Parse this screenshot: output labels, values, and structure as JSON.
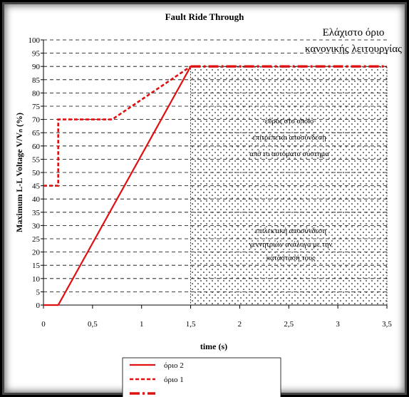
{
  "chart_data": {
    "type": "line",
    "title": "Fault Ride Through",
    "xlabel": "time (s)",
    "ylabel": "Maximum L-L Voltage V/Vₙ (%)",
    "xlim": [
      0,
      3.5
    ],
    "ylim": [
      0,
      100
    ],
    "x_ticks": [
      "0",
      "0,5",
      "1",
      "1,5",
      "2",
      "2,5",
      "3",
      "3,5"
    ],
    "y_ticks": [
      "0",
      "5",
      "10",
      "15",
      "20",
      "25",
      "30",
      "35",
      "40",
      "45",
      "50",
      "55",
      "60",
      "65",
      "70",
      "75",
      "80",
      "85",
      "90",
      "95",
      "100"
    ],
    "grid": "horizontal dashed",
    "series": [
      {
        "name": "όριο 2",
        "style": "solid",
        "color": "#e01010",
        "x": [
          0,
          0.15,
          1.5
        ],
        "y": [
          0,
          0,
          90
        ]
      },
      {
        "name": "όριο 1",
        "style": "dotted",
        "color": "#e01010",
        "x": [
          0,
          0.15,
          0.15,
          0.7,
          1.5
        ],
        "y": [
          45,
          45,
          70,
          70,
          90
        ]
      },
      {
        "name": "",
        "style": "dash-dot",
        "color": "#e01010",
        "x": [
          1.5,
          3.5
        ],
        "y": [
          90,
          90
        ]
      }
    ],
    "region": {
      "x": [
        1.5,
        3.5
      ],
      "y": [
        0,
        90
      ],
      "fill": "dotted pattern"
    },
    "annotations": {
      "normal_limit": [
        "Ελάχιστο όριο",
        "κανονικής λειτουργίας"
      ],
      "region_upper": [
        "εύρος στο οποίο",
        "επιτρέπεται αποσύνδεση",
        "από το αυτόματο σύστημα"
      ],
      "region_lower": [
        "επιλεκτική αποσύνδεση",
        "γεννητριών ανάλογα με την",
        "κατάστασή τους"
      ]
    },
    "legend_position": "bottom"
  }
}
